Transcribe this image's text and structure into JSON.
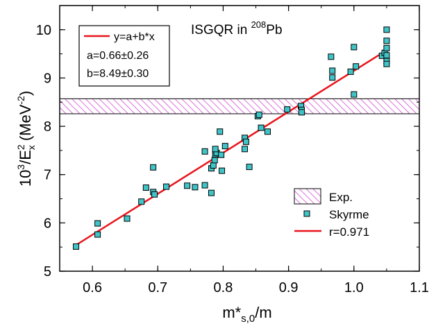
{
  "chart_data": {
    "type": "scatter",
    "annotation": {
      "main": "ISGQR in ",
      "superscript": "208",
      "suffix": "Pb"
    },
    "xlabel": {
      "main": "m*",
      "subscript": "s,0",
      "suffix": "/m"
    },
    "ylabel": {
      "prefix": "10",
      "prefix_sup": "3",
      "mid": "/E",
      "sub": "x",
      "sup": "2",
      "suffix_pre": " (MeV",
      "suffix_sup": "-2",
      "suffix_post": ")"
    },
    "xlim": [
      0.55,
      1.1
    ],
    "ylim": [
      5.0,
      10.5
    ],
    "xticks": [
      "0.6",
      "0.7",
      "0.8",
      "0.9",
      "1.0",
      "1.1"
    ],
    "xtick_values": [
      0.6,
      0.7,
      0.8,
      0.9,
      1.0,
      1.1
    ],
    "yticks": [
      "5",
      "6",
      "7",
      "8",
      "9",
      "10"
    ],
    "ytick_values": [
      5,
      6,
      7,
      8,
      9,
      10
    ],
    "fit_box": {
      "line_label": "y=a+b*x",
      "a_label": "a=0.66±0.26",
      "b_label": "b=8.49±0.30"
    },
    "fit": {
      "a": 0.66,
      "b": 8.49,
      "x_range": [
        0.575,
        1.05
      ],
      "color": "#e8141b"
    },
    "exp_band": {
      "y_low": 8.26,
      "y_high": 8.57,
      "color": "#cc33cc"
    },
    "legend": {
      "exp_label": "Exp.",
      "skyrme_label": "Skyrme",
      "r_label": "r=0.971",
      "position": "bottom-right"
    },
    "marker_color": "#40c4c8",
    "series": [
      {
        "name": "Skyrme",
        "points": [
          [
            0.575,
            5.51
          ],
          [
            0.608,
            5.99
          ],
          [
            0.608,
            5.76
          ],
          [
            0.653,
            6.09
          ],
          [
            0.675,
            6.44
          ],
          [
            0.682,
            6.73
          ],
          [
            0.693,
            6.64
          ],
          [
            0.695,
            6.59
          ],
          [
            0.693,
            7.15
          ],
          [
            0.713,
            6.75
          ],
          [
            0.745,
            6.77
          ],
          [
            0.757,
            6.74
          ],
          [
            0.772,
            6.78
          ],
          [
            0.782,
            6.62
          ],
          [
            0.772,
            7.48
          ],
          [
            0.782,
            7.13
          ],
          [
            0.785,
            7.19
          ],
          [
            0.787,
            7.3
          ],
          [
            0.788,
            7.42
          ],
          [
            0.79,
            7.45
          ],
          [
            0.788,
            7.53
          ],
          [
            0.797,
            7.41
          ],
          [
            0.795,
            7.89
          ],
          [
            0.798,
            7.08
          ],
          [
            0.803,
            7.59
          ],
          [
            0.833,
            7.53
          ],
          [
            0.833,
            7.76
          ],
          [
            0.835,
            7.68
          ],
          [
            0.84,
            7.16
          ],
          [
            0.853,
            8.21
          ],
          [
            0.855,
            8.24
          ],
          [
            0.858,
            7.97
          ],
          [
            0.868,
            7.89
          ],
          [
            0.898,
            8.35
          ],
          [
            0.919,
            8.42
          ],
          [
            0.92,
            8.34
          ],
          [
            0.92,
            8.29
          ],
          [
            0.965,
            9.44
          ],
          [
            0.967,
            9.15
          ],
          [
            0.967,
            9.01
          ],
          [
            0.995,
            9.13
          ],
          [
            1.0,
            9.64
          ],
          [
            1.0,
            8.66
          ],
          [
            1.003,
            9.24
          ],
          [
            1.043,
            9.46
          ],
          [
            1.047,
            9.52
          ],
          [
            1.05,
            10.0
          ],
          [
            1.05,
            9.77
          ],
          [
            1.05,
            9.62
          ],
          [
            1.05,
            9.47
          ],
          [
            1.05,
            9.35
          ],
          [
            1.05,
            9.29
          ]
        ]
      }
    ]
  }
}
